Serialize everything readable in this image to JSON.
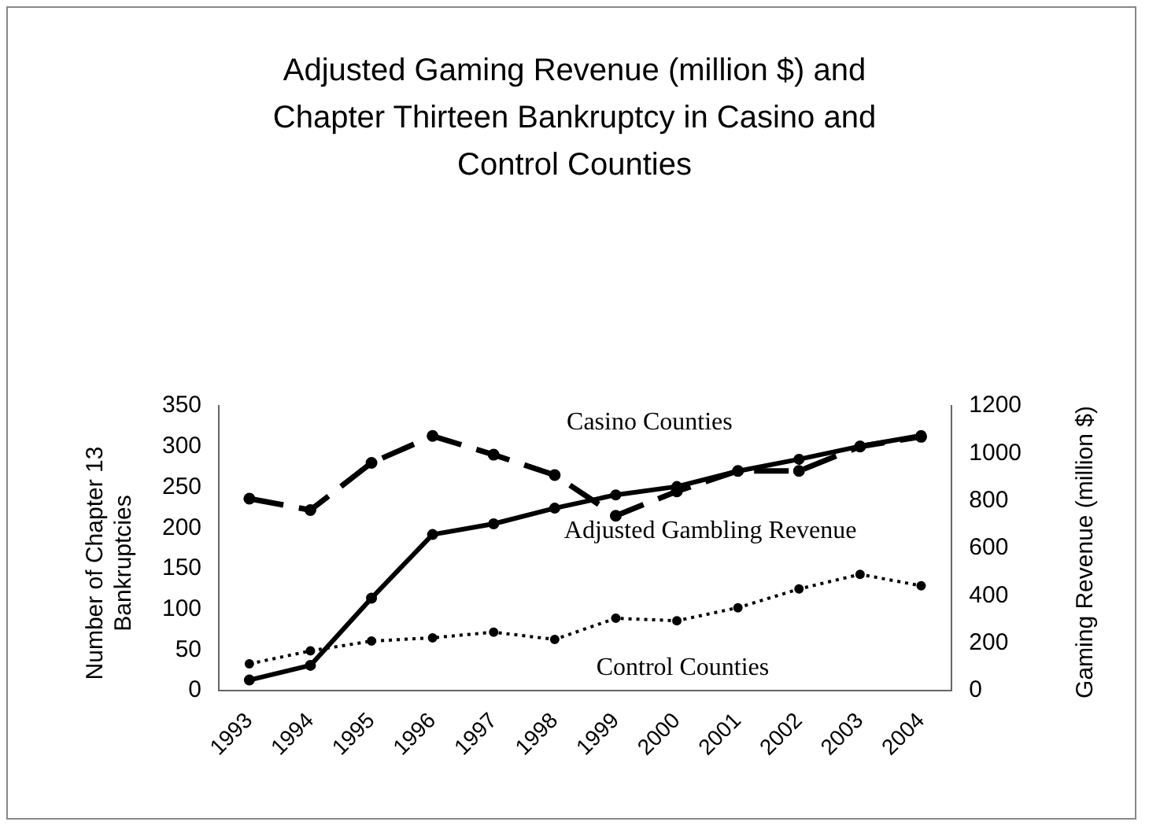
{
  "chart_data": {
    "type": "line",
    "title": "Adjusted Gaming Revenue (million $) and Chapter Thirteen Bankruptcy in Casino and Control Counties",
    "ylabel": "Number of Chapter 13 Bankruptcies",
    "y2label": "Gaming Revenue (million $)",
    "categories": [
      "1993",
      "1994",
      "1995",
      "1996",
      "1997",
      "1998",
      "1999",
      "2000",
      "2001",
      "2002",
      "2003",
      "2004"
    ],
    "series": [
      {
        "name": "Casino Counties",
        "color": "#000000",
        "line_style": "dashed",
        "values": [
          236,
          222,
          280,
          313,
          290,
          265,
          215,
          245,
          270,
          270,
          300,
          312
        ]
      },
      {
        "name": "Adjusted Gambling Revenue",
        "color": "#000000",
        "line_style": "solid",
        "axis": "y2",
        "values": [
          45,
          107,
          390,
          658,
          703,
          769,
          825,
          860,
          925,
          975,
          1030,
          1075
        ]
      },
      {
        "name": "Control Counties",
        "color": "#000000",
        "line_style": "dotted",
        "values": [
          33,
          49,
          61,
          65,
          72,
          63,
          89,
          86,
          102,
          125,
          143,
          129
        ]
      }
    ],
    "ylim": [
      0,
      350
    ],
    "yticks": [
      0,
      50,
      100,
      150,
      200,
      250,
      300,
      350
    ],
    "y2lim": [
      0,
      1200
    ],
    "y2ticks": [
      0,
      200,
      400,
      600,
      800,
      1000,
      1200
    ],
    "grid": false,
    "legend": false,
    "marker": "circle"
  }
}
